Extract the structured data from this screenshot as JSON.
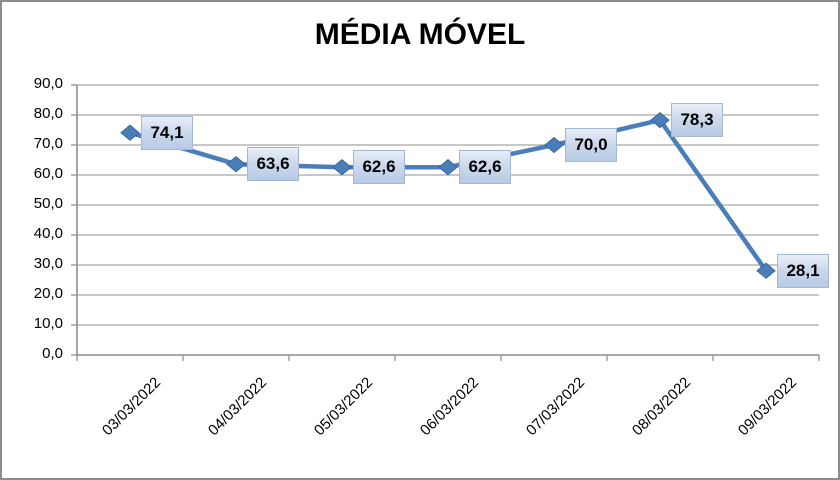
{
  "window": {
    "background": "#ffffff",
    "border_color": "#8c8c8c"
  },
  "chart_data": {
    "type": "line",
    "title": "MÉDIA MÓVEL",
    "categories": [
      "03/03/2022",
      "04/03/2022",
      "05/03/2022",
      "06/03/2022",
      "07/03/2022",
      "08/03/2022",
      "09/03/2022"
    ],
    "values": [
      74.1,
      63.6,
      62.6,
      62.6,
      70.0,
      78.3,
      28.1
    ],
    "point_labels": [
      "74,1",
      "63,6",
      "62,6",
      "62,6",
      "70,0",
      "78,3",
      "28,1"
    ],
    "xlabel": "",
    "ylabel": "",
    "ylim": [
      0,
      90
    ],
    "ytick_step": 10,
    "ytick_labels": [
      "0,0",
      "10,0",
      "20,0",
      "30,0",
      "40,0",
      "50,0",
      "60,0",
      "70,0",
      "80,0",
      "90,0"
    ],
    "grid": "horizontal",
    "legend": "none",
    "line_color": "#4a7ebb",
    "marker": "diamond",
    "marker_color": "#4a7ebb",
    "marker_edge_color": "#38659e",
    "data_label_bg_top": "#e9eff8",
    "data_label_bg_bottom": "#b7cbe5",
    "data_label_border": "#a3b8d4",
    "gridline_color": "#a6a6a6",
    "axis_color": "#8e8e8e"
  }
}
